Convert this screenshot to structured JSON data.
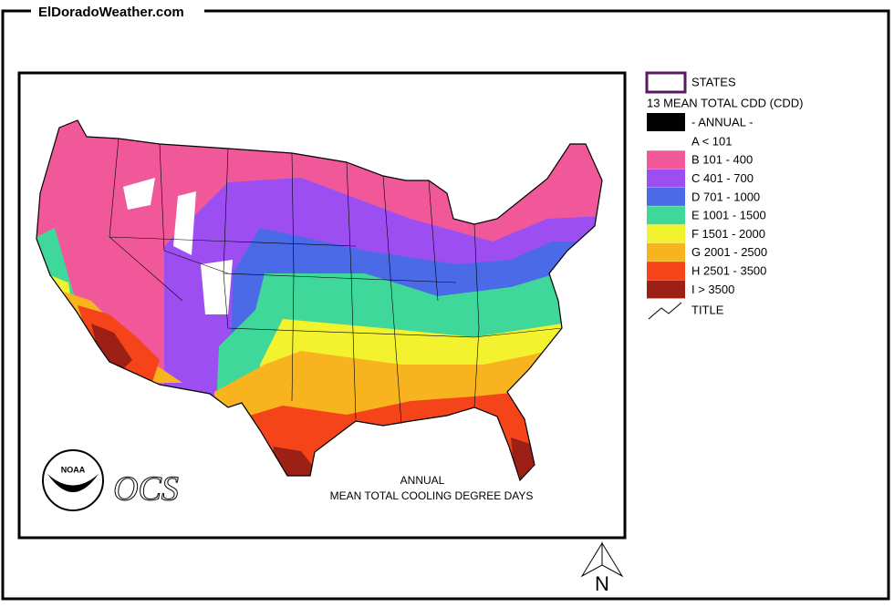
{
  "header": {
    "site": "ElDoradoWeather.com"
  },
  "map": {
    "caption_line1": "ANNUAL",
    "caption_line2": "MEAN TOTAL COOLING DEGREE DAYS",
    "logo_text": "NOAA",
    "ocs_text": "OCS"
  },
  "legend": {
    "states": "STATES",
    "layer": "13 MEAN TOTAL CDD (CDD)",
    "group": "- ANNUAL -",
    "classes": [
      {
        "label": "A < 101",
        "color": "#ffffff"
      },
      {
        "label": "B 101 - 400",
        "color": "#f0589a"
      },
      {
        "label": "C 401 - 700",
        "color": "#9d4ef0"
      },
      {
        "label": "D 701 - 1000",
        "color": "#4a6ae8"
      },
      {
        "label": "E 1001 - 1500",
        "color": "#40d79a"
      },
      {
        "label": "F 1501 - 2000",
        "color": "#f2f22e"
      },
      {
        "label": "G 2001 - 2500",
        "color": "#f7b41e"
      },
      {
        "label": "H 2501 - 3500",
        "color": "#f5441a"
      },
      {
        "label": "I > 3500",
        "color": "#9c2016"
      }
    ],
    "title": "TITLE"
  },
  "compass": "N"
}
